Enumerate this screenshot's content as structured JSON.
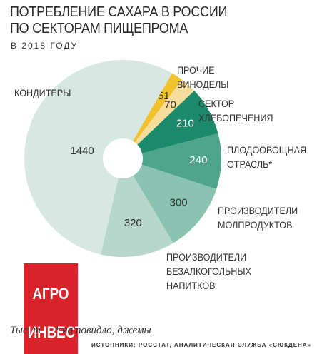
{
  "title": "ПОТРЕБЛЕНИЕ САХАРА В РОССИИ\nПО СЕКТОРАМ ПИЩЕПРОМА",
  "subtitle": "В 2018 ГОДУ",
  "logo": {
    "line1": "АГРО",
    "line2": "ИНВЕСТОР"
  },
  "unit": "Тыс. т",
  "note": "* на повидло, джемы",
  "source": "ИСТОЧНИКИ: РОССТАТ, АНАЛИТИЧЕСКАЯ СЛУЖБА «СЮКДЕНА»",
  "chart_data": {
    "type": "donut",
    "categories": [
      "ПРОЧИЕ",
      "ВИНОДЕЛЫ",
      "СЕКТОР\nХЛЕБОПЕЧЕНИЯ",
      "ПЛОДООВОЩНАЯ\nОТРАСЛЬ*",
      "ПРОИЗВОДИТЕЛИ\nМОЛПРОДУКТОВ",
      "ПРОИЗВОДИТЕЛИ\nБЕЗАЛКОГОЛЬНЫХ\nНАПИТКОВ",
      "КОНДИТЕРЫ"
    ],
    "values": [
      51,
      70,
      210,
      240,
      300,
      320,
      1440
    ],
    "colors": [
      "#f2c12e",
      "#f6dd9c",
      "#1b8a6b",
      "#4ea58b",
      "#8bc3b2",
      "#b7d7cc",
      "#d7e8e2"
    ]
  }
}
